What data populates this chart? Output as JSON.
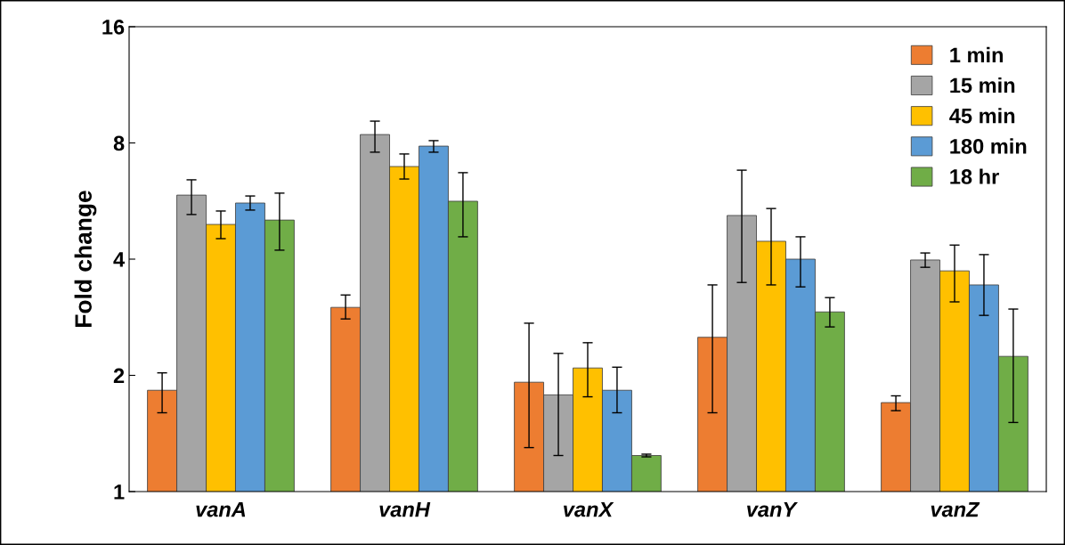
{
  "chart_data": {
    "type": "bar",
    "ylabel": "Fold change",
    "log": "y",
    "ylim": [
      1,
      16
    ],
    "yticks": [
      1,
      2,
      4,
      8,
      16
    ],
    "grid": false,
    "legend": "top right",
    "categories": [
      "vanA",
      "vanH",
      "vanX",
      "vanY",
      "vanZ"
    ],
    "series": [
      {
        "name": "1 min",
        "color": "#ed7d31",
        "values": [
          1.83,
          3.0,
          1.92,
          2.51,
          1.7
        ],
        "errors": [
          [
            1.6,
            2.03
          ],
          [
            2.8,
            3.23
          ],
          [
            1.3,
            2.73
          ],
          [
            1.6,
            3.43
          ],
          [
            1.62,
            1.77
          ]
        ]
      },
      {
        "name": "15 min",
        "color": "#a5a5a5",
        "values": [
          5.86,
          8.41,
          1.78,
          5.19,
          3.98
        ],
        "errors": [
          [
            5.22,
            6.42
          ],
          [
            7.57,
            9.11
          ],
          [
            1.24,
            2.28
          ],
          [
            3.48,
            6.8
          ],
          [
            3.81,
            4.15
          ]
        ]
      },
      {
        "name": "45 min",
        "color": "#ffc000",
        "values": [
          4.92,
          6.95,
          2.09,
          4.45,
          3.73
        ],
        "errors": [
          [
            4.52,
            5.33
          ],
          [
            6.45,
            7.49
          ],
          [
            1.76,
            2.43
          ],
          [
            3.43,
            5.41
          ],
          [
            3.1,
            4.35
          ]
        ]
      },
      {
        "name": "180 min",
        "color": "#5b9bd5",
        "values": [
          5.59,
          7.85,
          1.83,
          4.0,
          3.43
        ],
        "errors": [
          [
            5.36,
            5.83
          ],
          [
            7.57,
            8.11
          ],
          [
            1.6,
            2.1
          ],
          [
            3.39,
            4.57
          ],
          [
            2.86,
            4.11
          ]
        ]
      },
      {
        "name": "18 hr",
        "color": "#70ad47",
        "values": [
          5.05,
          5.65,
          1.24,
          2.92,
          2.24
        ],
        "errors": [
          [
            4.22,
            5.93
          ],
          [
            4.57,
            6.7
          ],
          [
            1.23,
            1.25
          ],
          [
            2.67,
            3.18
          ],
          [
            1.51,
            2.97
          ]
        ]
      }
    ]
  }
}
